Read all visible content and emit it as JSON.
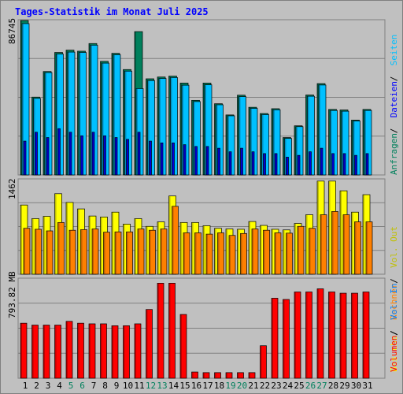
{
  "title": "Tages-Statistik im Monat Juli 2025",
  "colors": {
    "title": "#0000ff",
    "anfragen": "#00805c",
    "dateien": "#0000ff",
    "seiten": "#00c0ff",
    "besuche": "#ffff00",
    "rechner": "#ff8000",
    "vol_out": "#c0c000",
    "vol_in": "#0080ff",
    "volumen": "#ff0000",
    "weekend": "#00805c"
  },
  "chart_data": [
    {
      "type": "bar",
      "panel": "top",
      "max_label": "86745",
      "ylim": [
        0,
        86745
      ],
      "right_labels": [
        "Anfragen",
        "Dateien",
        "Seiten"
      ],
      "series": [
        {
          "name": "Anfragen",
          "values": [
            86745,
            43720,
            58100,
            68800,
            70100,
            69500,
            73800,
            63800,
            68300,
            59200,
            80500,
            54000,
            55000,
            55500,
            51600,
            41900,
            51600,
            40000,
            33700,
            44800,
            38000,
            34500,
            37200,
            21000,
            27600,
            44900,
            51300,
            36800,
            36500,
            30800,
            36800
          ]
        },
        {
          "name": "Seiten",
          "values": [
            85000,
            43000,
            57500,
            67900,
            69000,
            68800,
            72900,
            62800,
            67500,
            58300,
            48500,
            53000,
            54200,
            54700,
            50400,
            41200,
            50600,
            39400,
            33200,
            44000,
            37400,
            33900,
            36600,
            20500,
            27100,
            44200,
            50500,
            36200,
            35800,
            30300,
            36200
          ]
        },
        {
          "name": "Dateien",
          "values": [
            19000,
            24000,
            21000,
            26000,
            24000,
            22000,
            24000,
            22000,
            21000,
            20000,
            24000,
            19000,
            18000,
            18000,
            17000,
            16000,
            16000,
            15000,
            13000,
            15000,
            13000,
            12000,
            12000,
            10000,
            11000,
            13000,
            15000,
            12000,
            12000,
            11000,
            12000
          ]
        }
      ]
    },
    {
      "type": "bar",
      "panel": "middle",
      "max_label": "1462",
      "ylim": [
        0,
        1462
      ],
      "right_labels": [
        "Besuche",
        "Rechner",
        "Vol. Out"
      ],
      "series": [
        {
          "name": "Besuche",
          "values": [
            1070,
            860,
            895,
            1245,
            1110,
            1010,
            900,
            885,
            960,
            775,
            860,
            740,
            810,
            1210,
            800,
            800,
            750,
            710,
            700,
            695,
            815,
            755,
            695,
            685,
            785,
            920,
            1440,
            1440,
            1290,
            960,
            1230
          ]
        },
        {
          "name": "Rechner",
          "values": [
            710,
            695,
            670,
            800,
            680,
            690,
            700,
            650,
            655,
            655,
            700,
            680,
            700,
            1050,
            640,
            640,
            620,
            640,
            600,
            630,
            700,
            680,
            640,
            635,
            740,
            710,
            920,
            970,
            920,
            810,
            810
          ]
        }
      ]
    },
    {
      "type": "bar",
      "panel": "bottom",
      "max_label": "793.82 MB",
      "ylim": [
        0,
        793.82
      ],
      "right_labels": [
        "Volumen",
        "Vol. In"
      ],
      "series": [
        {
          "name": "Volumen",
          "values": [
            440,
            425,
            425,
            425,
            455,
            440,
            435,
            435,
            420,
            420,
            435,
            550,
            760,
            760,
            510,
            50,
            45,
            45,
            45,
            45,
            45,
            260,
            640,
            630,
            690,
            690,
            715,
            690,
            680,
            680,
            690
          ]
        }
      ]
    }
  ],
  "x_labels": [
    "1",
    "2",
    "3",
    "4",
    "5",
    "6",
    "7",
    "8",
    "9",
    "10",
    "11",
    "12",
    "13",
    "14",
    "15",
    "16",
    "17",
    "18",
    "19",
    "20",
    "21",
    "22",
    "23",
    "24",
    "25",
    "26",
    "27",
    "28",
    "29",
    "30",
    "31"
  ],
  "weekend_days": [
    5,
    6,
    12,
    13,
    19,
    20,
    26,
    27
  ]
}
